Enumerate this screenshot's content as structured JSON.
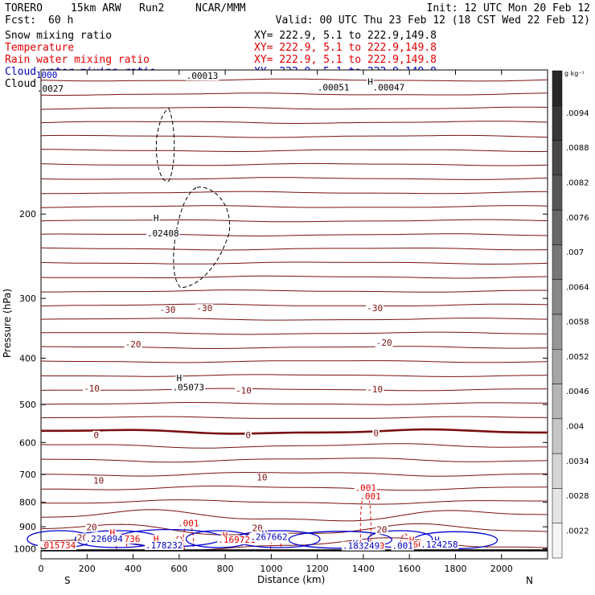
{
  "header": {
    "model": "TORERO",
    "resolution": "15km ARW",
    "run": "Run2",
    "org": "NCAR/MMM",
    "init": "Init: 12 UTC Mon 20 Feb 12",
    "fcst_label": "Fcst:",
    "fcst_value": "60 h",
    "valid": "Valid: 00 UTC Thu 23 Feb 12 (18 CST Wed 22 Feb 12)"
  },
  "fields": [
    {
      "name": "Snow mixing ratio",
      "xy": "XY= 222.9,  5.1 to 222.9,149.8",
      "color": "#000000"
    },
    {
      "name": "Temperature",
      "xy": "XY= 222.9,  5.1 to 222.9,149.8",
      "color": "#e00000"
    },
    {
      "name": "Rain water mixing ratio",
      "xy": "XY= 222.9,  5.1 to 222.9,149.8",
      "color": "#e00000"
    },
    {
      "name": "Cloud water mixing ratio",
      "xy": "XY= 222.9,  5.1 to 222.9,149.8",
      "color": "#0000c0"
    },
    {
      "name": "Cloud ice mixing ratio",
      "xy": "XY= 222.9,  5.1 to 222.9,149.8",
      "color": "#000000"
    }
  ],
  "chart_data": {
    "type": "cross-section",
    "xlabel": "Distance (km)",
    "ylabel": "Pressure (hPa)",
    "x_ticks": [
      0,
      200,
      400,
      600,
      800,
      1000,
      1200,
      1400,
      1600,
      1800,
      2000
    ],
    "x_range": [
      0,
      2200
    ],
    "y_ticks": [
      200,
      300,
      400,
      500,
      600,
      700,
      800,
      900,
      1000
    ],
    "y_range": [
      1050,
      100
    ],
    "y_scale": "log",
    "left_end_label": "S",
    "right_end_label": "N",
    "colorbar": {
      "unit": "g kg⁻¹",
      "labels": [
        ".0094",
        ".0088",
        ".0082",
        ".0076",
        ".007",
        ".0064",
        ".0058",
        ".0052",
        ".0046",
        ".004",
        ".0034",
        ".0028",
        ".0022"
      ]
    },
    "temperature_labels": [
      {
        "x": 550,
        "p": 320,
        "text": "-30"
      },
      {
        "x": 710,
        "p": 318,
        "text": "-30"
      },
      {
        "x": 1450,
        "p": 318,
        "text": "-30"
      },
      {
        "x": 400,
        "p": 378,
        "text": "-20"
      },
      {
        "x": 1490,
        "p": 375,
        "text": "-20"
      },
      {
        "x": 220,
        "p": 468,
        "text": "-10"
      },
      {
        "x": 880,
        "p": 472,
        "text": "-10"
      },
      {
        "x": 1450,
        "p": 470,
        "text": "-10"
      },
      {
        "x": 240,
        "p": 585,
        "text": "0"
      },
      {
        "x": 900,
        "p": 585,
        "text": "0"
      },
      {
        "x": 1455,
        "p": 580,
        "text": "0"
      },
      {
        "x": 250,
        "p": 728,
        "text": "10"
      },
      {
        "x": 960,
        "p": 718,
        "text": "10"
      },
      {
        "x": 220,
        "p": 912,
        "text": "20"
      },
      {
        "x": 940,
        "p": 915,
        "text": "20"
      },
      {
        "x": 1480,
        "p": 922,
        "text": "20"
      },
      {
        "x": 180,
        "p": 958,
        "text": "20"
      }
    ],
    "cloud_ice_labels": [
      {
        "x": 500,
        "p": 206,
        "text": "H"
      },
      {
        "x": 530,
        "p": 222,
        "text": ".02408"
      },
      {
        "x": 600,
        "p": 445,
        "text": "H"
      },
      {
        "x": 640,
        "p": 465,
        "text": ".05073"
      },
      {
        "x": 700,
        "p": 104,
        "text": ".00013"
      },
      {
        "x": 1430,
        "p": 107,
        "text": "H"
      },
      {
        "x": 1270,
        "p": 110,
        "text": ".00051"
      },
      {
        "x": 1510,
        "p": 110,
        "text": ".00047"
      }
    ],
    "rain_labels": [
      {
        "x": 1410,
        "p": 755,
        "text": ".001"
      },
      {
        "x": 1430,
        "p": 785,
        "text": ".001"
      },
      {
        "x": 640,
        "p": 895,
        "text": ".001"
      },
      {
        "x": 1020,
        "p": 960,
        "text": ".001"
      },
      {
        "x": 310,
        "p": 935,
        "text": "H"
      },
      {
        "x": 350,
        "p": 965,
        "text": ".042736"
      },
      {
        "x": 500,
        "p": 965,
        "text": "H"
      },
      {
        "x": 800,
        "p": 948,
        "text": "H"
      },
      {
        "x": 850,
        "p": 968,
        "text": ".169721"
      },
      {
        "x": 70,
        "p": 995,
        "text": ".015734"
      },
      {
        "x": 1380,
        "p": 985,
        "text": "H"
      },
      {
        "x": 1410,
        "p": 997,
        "text": ".139590"
      },
      {
        "x": 1610,
        "p": 970,
        "text": "H"
      },
      {
        "x": 1650,
        "p": 990,
        "text": ".060417"
      }
    ],
    "cloud_water_labels": [
      {
        "x": 275,
        "p": 965,
        "text": ".226094"
      },
      {
        "x": 535,
        "p": 995,
        "text": ".178232"
      },
      {
        "x": 970,
        "p": 940,
        "text": "H"
      },
      {
        "x": 990,
        "p": 955,
        "text": ".267662"
      },
      {
        "x": 1365,
        "p": 985,
        "text": "H"
      },
      {
        "x": 1390,
        "p": 997,
        "text": ".183249"
      },
      {
        "x": 1570,
        "p": 997,
        "text": ".001"
      },
      {
        "x": 1720,
        "p": 970,
        "text": "H"
      },
      {
        "x": 1730,
        "p": 990,
        "text": ".124258"
      }
    ],
    "top_left_label": {
      "x": 25,
      "p": 104,
      "text": "1000"
    },
    "top_left_label2": {
      "x": 40,
      "p": 111,
      "text": ".0027"
    }
  }
}
